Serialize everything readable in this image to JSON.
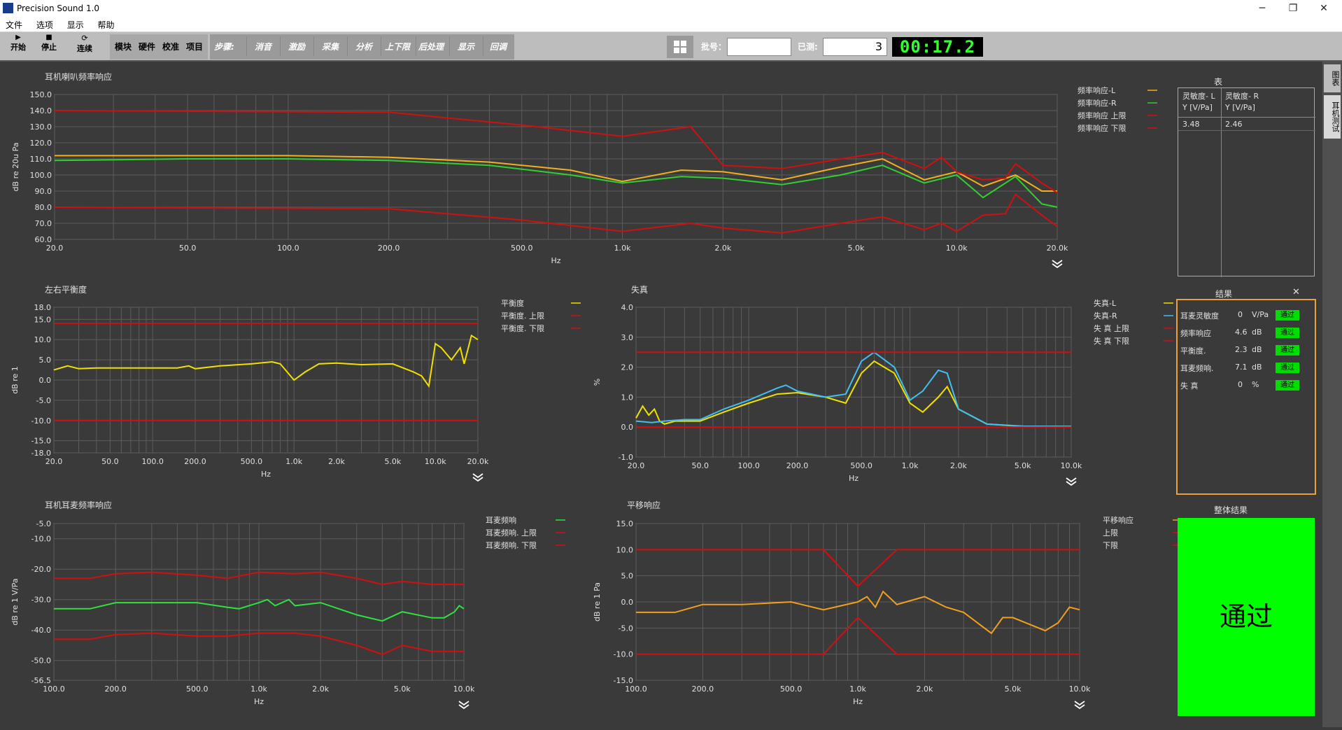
{
  "window": {
    "title": "Precision Sound 1.0",
    "minimize": "─",
    "maximize": "❐",
    "close": "✕"
  },
  "menu": [
    "文件",
    "选项",
    "显示",
    "帮助"
  ],
  "toolbar": {
    "start": "开始",
    "stop": "停止",
    "continuous": "连续",
    "modules": [
      "模块",
      "硬件",
      "校准",
      "项目"
    ],
    "steps_label": "步骤:",
    "steps": [
      "消音",
      "激励",
      "采集",
      "分析",
      "上下限",
      "后处理",
      "显示",
      "回调"
    ],
    "batch_label": "批号：",
    "batch_value": "",
    "tested_label": "已测:",
    "tested_value": "3",
    "timer": "00:17.2"
  },
  "right_tabs": [
    "图表",
    "耳机测试"
  ],
  "colors": {
    "yellow": "#f0d000",
    "orange": "#f0a020",
    "green": "#30d030",
    "red": "#d01010",
    "cyan": "#40c0f0",
    "grid": "#6a6a6a",
    "pass": "#00ff00"
  },
  "table": {
    "title": "表",
    "headers": [
      "灵敏度- L\nY [V/Pa]",
      "灵敏度- R\nY [V/Pa]"
    ],
    "values": [
      "3.48",
      "2.46"
    ]
  },
  "results": {
    "title": "结果",
    "close": "✕",
    "rows": [
      {
        "label": "耳麦灵敏度",
        "value": "0",
        "unit": "V/Pa",
        "status": "通过"
      },
      {
        "label": "频率响应",
        "value": "4.6",
        "unit": "dB",
        "status": "通过"
      },
      {
        "label": "平衡度.",
        "value": "2.3",
        "unit": "dB",
        "status": "通过"
      },
      {
        "label": "耳麦频响.",
        "value": "7.1",
        "unit": "dB",
        "status": "通过"
      },
      {
        "label": "失 真",
        "value": "0",
        "unit": "%",
        "status": "通过"
      }
    ]
  },
  "overall": {
    "title": "整体结果",
    "value": "通过"
  },
  "chart_data": [
    {
      "id": "freq",
      "type": "line",
      "title": "耳机喇叭频率响应",
      "xlabel": "Hz",
      "ylabel": "dB re 20u Pa",
      "xscale": "log",
      "xlim": [
        20,
        20000
      ],
      "ylim": [
        60,
        150
      ],
      "xticks": [
        20,
        50,
        100,
        200,
        500,
        1000,
        2000,
        5000,
        10000,
        20000
      ],
      "xtick_labels": [
        "20.0",
        "50.0",
        "100.0",
        "200.0",
        "500.0",
        "1.0k",
        "2.0k",
        "5.0k",
        "10.0k",
        "20.0k"
      ],
      "yticks": [
        60,
        70,
        80,
        90,
        100,
        110,
        120,
        130,
        140,
        150
      ],
      "ytick_labels": [
        "60.0",
        "70.0",
        "80.0",
        "90.0",
        "100.0",
        "110.0",
        "120.0",
        "130.0",
        "140.0",
        "150.0"
      ],
      "legend": "right",
      "series": [
        {
          "name": "频率响应-L",
          "color": "#f0b020",
          "x": [
            20,
            50,
            100,
            200,
            400,
            700,
            1000,
            1500,
            2000,
            3000,
            4500,
            6000,
            8000,
            10000,
            12000,
            15000,
            18000,
            20000
          ],
          "y": [
            112,
            112,
            112,
            111,
            108,
            103,
            96,
            103,
            102,
            97,
            105,
            110,
            97,
            102,
            93,
            100,
            90,
            90
          ]
        },
        {
          "name": "频率响应-R",
          "color": "#30d030",
          "x": [
            20,
            50,
            100,
            200,
            400,
            700,
            1000,
            1500,
            2000,
            3000,
            4500,
            6000,
            8000,
            10000,
            12000,
            15000,
            18000,
            20000
          ],
          "y": [
            109,
            110,
            110,
            109,
            106,
            100,
            95,
            99,
            98,
            94,
            100,
            106,
            95,
            100,
            86,
            99,
            82,
            80
          ]
        },
        {
          "name": "频率响应 上限",
          "color": "#d01010",
          "x": [
            20,
            200,
            500,
            1000,
            1600,
            2000,
            3000,
            4500,
            6000,
            8000,
            9000,
            10000,
            12000,
            14000,
            15000,
            18000,
            20000
          ],
          "y": [
            140,
            139,
            131,
            124,
            130,
            106,
            104,
            110,
            114,
            104,
            111,
            102,
            97,
            98,
            107,
            95,
            89
          ]
        },
        {
          "name": "频率响应 下限",
          "color": "#d01010",
          "x": [
            20,
            200,
            500,
            1000,
            1600,
            2000,
            3000,
            4500,
            6000,
            8000,
            9000,
            10000,
            12000,
            14000,
            15000,
            18000,
            20000
          ],
          "y": [
            80,
            79,
            72,
            65,
            70,
            67,
            64,
            70,
            74,
            66,
            70,
            65,
            75,
            76,
            88,
            75,
            68
          ]
        }
      ]
    },
    {
      "id": "balance",
      "type": "line",
      "title": "左右平衡度",
      "xlabel": "Hz",
      "ylabel": "dB re 1",
      "xscale": "log",
      "xlim": [
        20,
        20000
      ],
      "ylim": [
        -18,
        18
      ],
      "xticks": [
        20,
        50,
        100,
        200,
        500,
        1000,
        2000,
        5000,
        10000,
        20000
      ],
      "xtick_labels": [
        "20.0",
        "50.0",
        "100.0",
        "200.0",
        "500.0",
        "1.0k",
        "2.0k",
        "5.0k",
        "10.0k",
        "20.0k"
      ],
      "yticks": [
        -18,
        -15,
        -10,
        -5,
        0,
        5,
        10,
        15,
        18
      ],
      "ytick_labels": [
        "-18.0",
        "-15.0",
        "-10.0",
        "-5.0",
        "0.0",
        "5.0",
        "10.0",
        "15.0",
        "18.0"
      ],
      "legend": "right",
      "series": [
        {
          "name": "平衡度",
          "color": "#f0e000",
          "x": [
            20,
            25,
            30,
            40,
            60,
            100,
            150,
            180,
            200,
            300,
            500,
            700,
            800,
            1000,
            1200,
            1500,
            2000,
            3000,
            5000,
            7000,
            8000,
            9000,
            10000,
            11000,
            13000,
            15000,
            16000,
            18000,
            20000
          ],
          "y": [
            2.5,
            3.5,
            2.8,
            3,
            3,
            3,
            3,
            3.5,
            2.8,
            3.5,
            4,
            4.5,
            4,
            0,
            2,
            4,
            4.2,
            3.8,
            4,
            2,
            1,
            -1.5,
            9,
            8,
            5,
            8,
            4,
            11,
            10
          ]
        },
        {
          "name": "平衡度. 上限",
          "color": "#d01010",
          "x": [
            20,
            20000
          ],
          "y": [
            14,
            14
          ]
        },
        {
          "name": "平衡度. 下限",
          "color": "#d01010",
          "x": [
            20,
            20000
          ],
          "y": [
            -10,
            -10
          ]
        }
      ]
    },
    {
      "id": "distortion",
      "type": "line",
      "title": "失真",
      "xlabel": "Hz",
      "ylabel": "%",
      "xscale": "log",
      "xlim": [
        20,
        10000
      ],
      "ylim": [
        -1,
        4
      ],
      "xticks": [
        20,
        50,
        100,
        200,
        500,
        1000,
        2000,
        5000,
        10000
      ],
      "xtick_labels": [
        "20.0",
        "50.0",
        "100.0",
        "200.0",
        "500.0",
        "1.0k",
        "2.0k",
        "5.0k",
        "10.0k"
      ],
      "yticks": [
        -1,
        0,
        1,
        2,
        3,
        4
      ],
      "ytick_labels": [
        "-1.0",
        "0.0",
        "1.0",
        "2.0",
        "3.0",
        "4.0"
      ],
      "legend": "right",
      "series": [
        {
          "name": "失真-L",
          "color": "#f0e000",
          "x": [
            20,
            22,
            24,
            26,
            28,
            30,
            35,
            40,
            50,
            70,
            100,
            150,
            200,
            300,
            400,
            500,
            600,
            800,
            1000,
            1200,
            1500,
            1700,
            2000,
            3000,
            5000,
            10000
          ],
          "y": [
            0.3,
            0.7,
            0.4,
            0.6,
            0.2,
            0.1,
            0.2,
            0.2,
            0.2,
            0.5,
            0.8,
            1.1,
            1.15,
            1,
            0.8,
            1.8,
            2.2,
            1.8,
            0.8,
            0.5,
            1,
            1.35,
            0.6,
            0.1,
            0.02,
            0.02
          ]
        },
        {
          "name": "失真-R",
          "color": "#40c0f0",
          "x": [
            20,
            25,
            30,
            40,
            50,
            70,
            100,
            150,
            170,
            200,
            300,
            400,
            500,
            600,
            800,
            1000,
            1200,
            1500,
            1700,
            2000,
            3000,
            5000,
            10000
          ],
          "y": [
            0.2,
            0.15,
            0.2,
            0.25,
            0.25,
            0.6,
            0.9,
            1.3,
            1.4,
            1.2,
            1,
            1.1,
            2.2,
            2.5,
            2,
            0.9,
            1.2,
            1.9,
            1.8,
            0.6,
            0.1,
            0.03,
            0.02
          ]
        },
        {
          "name": "失 真 上限",
          "color": "#d01010",
          "x": [
            20,
            10000
          ],
          "y": [
            2.5,
            2.5
          ]
        },
        {
          "name": "失 真 下限",
          "color": "#d01010",
          "x": [
            20,
            10000
          ],
          "y": [
            0,
            0
          ]
        }
      ]
    },
    {
      "id": "mic",
      "type": "line",
      "title": "耳机耳麦频率响应",
      "xlabel": "Hz",
      "ylabel": "dB re 1 V/Pa",
      "xscale": "log",
      "xlim": [
        100,
        10000
      ],
      "ylim": [
        -56.5,
        -5
      ],
      "xticks": [
        100,
        200,
        500,
        1000,
        2000,
        5000,
        10000
      ],
      "xtick_labels": [
        "100.0",
        "200.0",
        "500.0",
        "1.0k",
        "2.0k",
        "5.0k",
        "10.0k"
      ],
      "yticks": [
        -56.5,
        -50,
        -40,
        -30,
        -20,
        -10,
        -5
      ],
      "ytick_labels": [
        "-56.5",
        "-50.0",
        "-40.0",
        "-30.0",
        "-20.0",
        "-10.0",
        "-5.0"
      ],
      "legend": "right",
      "series": [
        {
          "name": "耳麦频响",
          "color": "#30e040",
          "x": [
            100,
            150,
            200,
            300,
            500,
            700,
            800,
            1000,
            1100,
            1200,
            1400,
            1500,
            2000,
            3000,
            4000,
            5000,
            7000,
            8000,
            9000,
            9500,
            10000
          ],
          "y": [
            -33,
            -33,
            -31,
            -31,
            -31,
            -32.5,
            -33,
            -31,
            -30,
            -32,
            -30,
            -32,
            -31,
            -35,
            -37,
            -34,
            -36,
            -36,
            -34,
            -32,
            -33
          ]
        },
        {
          "name": "耳麦频响. 上限",
          "color": "#d01010",
          "x": [
            100,
            150,
            200,
            300,
            500,
            700,
            1000,
            1500,
            2000,
            3000,
            4000,
            5000,
            7000,
            10000
          ],
          "y": [
            -23,
            -23,
            -21.5,
            -21,
            -22,
            -23,
            -21,
            -21.5,
            -21,
            -23,
            -25,
            -24,
            -25,
            -25
          ]
        },
        {
          "name": "耳麦频响. 下限",
          "color": "#d01010",
          "x": [
            100,
            150,
            200,
            300,
            500,
            700,
            1000,
            1500,
            2000,
            3000,
            4000,
            5000,
            7000,
            10000
          ],
          "y": [
            -43,
            -43,
            -41.5,
            -41,
            -42,
            -42,
            -41,
            -41,
            -42,
            -45,
            -48,
            -45,
            -47,
            -47
          ]
        }
      ]
    },
    {
      "id": "shift",
      "type": "line",
      "title": "平移响应",
      "xlabel": "Hz",
      "ylabel": "dB re 1 Pa",
      "xscale": "log",
      "xlim": [
        100,
        10000
      ],
      "ylim": [
        -15,
        15
      ],
      "xticks": [
        100,
        200,
        500,
        1000,
        2000,
        5000,
        10000
      ],
      "xtick_labels": [
        "100.0",
        "200.0",
        "500.0",
        "1.0k",
        "2.0k",
        "5.0k",
        "10.0k"
      ],
      "yticks": [
        -15,
        -10,
        -5,
        0,
        5,
        10,
        15
      ],
      "ytick_labels": [
        "-15.0",
        "-10.0",
        "-5.0",
        "0.0",
        "5.0",
        "10.0",
        "15.0"
      ],
      "legend": "right",
      "series": [
        {
          "name": "平移响应",
          "color": "#f0a020",
          "x": [
            100,
            150,
            200,
            300,
            500,
            700,
            1000,
            1100,
            1200,
            1300,
            1500,
            2000,
            2500,
            3000,
            4000,
            4500,
            5000,
            7000,
            8000,
            9000,
            10000
          ],
          "y": [
            -2,
            -2,
            -0.5,
            -0.5,
            0,
            -1.5,
            0,
            1,
            -1,
            2,
            -0.5,
            1,
            -1,
            -2,
            -6,
            -3,
            -3,
            -5.5,
            -4,
            -1,
            -1.5
          ]
        },
        {
          "name": "上限",
          "color": "#d01010",
          "x": [
            100,
            700,
            1000,
            1500,
            10000
          ],
          "y": [
            10,
            10,
            3,
            10,
            10
          ]
        },
        {
          "name": "下限",
          "color": "#d01010",
          "x": [
            100,
            700,
            1000,
            1500,
            10000
          ],
          "y": [
            -10,
            -10,
            -3,
            -10,
            -10
          ]
        }
      ]
    }
  ]
}
